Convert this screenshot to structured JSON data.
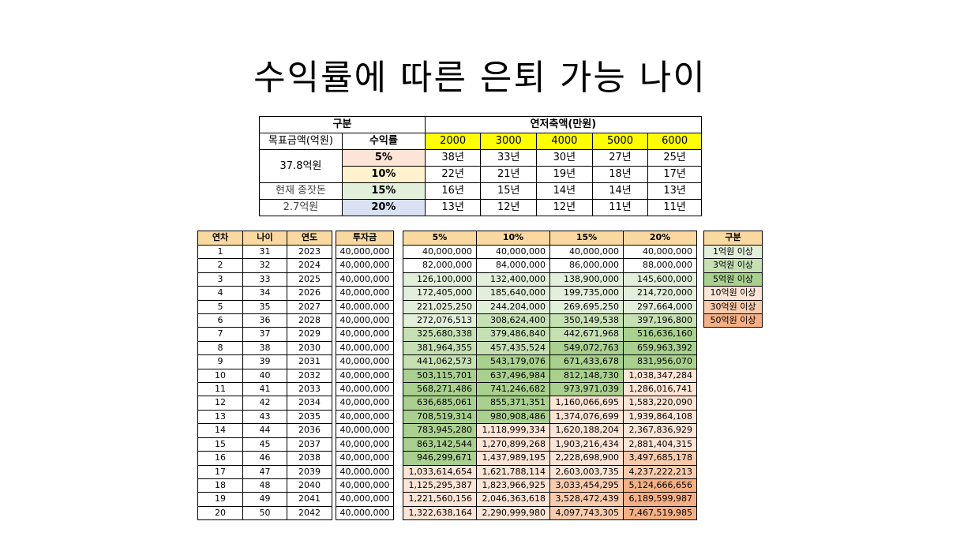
{
  "title": "수익률에 따른 은퇴 가능 나이",
  "summary": {
    "h_group": "구분",
    "h_savings": "연저축액(만원)",
    "h_target": "목표금액(억원)",
    "h_rate": "수익률",
    "savings": [
      "2000",
      "3000",
      "4000",
      "5000",
      "6000"
    ],
    "target_value": "37.8억원",
    "current_label": "현재 종잣돈",
    "current_value": "2.7억원",
    "rows": [
      {
        "rate": "5%",
        "color": "#fce4d6",
        "years": [
          "38년",
          "33년",
          "30년",
          "27년",
          "25년"
        ]
      },
      {
        "rate": "10%",
        "color": "#fff2cc",
        "years": [
          "22년",
          "21년",
          "19년",
          "18년",
          "17년"
        ]
      },
      {
        "rate": "15%",
        "color": "#e2efda",
        "years": [
          "16년",
          "15년",
          "14년",
          "14년",
          "13년"
        ]
      },
      {
        "rate": "20%",
        "color": "#d9e1f2",
        "years": [
          "13년",
          "12년",
          "12년",
          "11년",
          "11년"
        ]
      }
    ]
  },
  "table": {
    "headers": {
      "year_no": "연차",
      "age": "나이",
      "year": "연도",
      "invest": "투자금",
      "rates": [
        "5%",
        "10%",
        "15%",
        "20%"
      ]
    },
    "rows": [
      {
        "n": "1",
        "age": "31",
        "year": "2023",
        "inv": "40,000,000",
        "v": [
          "40,000,000",
          "40,000,000",
          "40,000,000",
          "40,000,000"
        ]
      },
      {
        "n": "2",
        "age": "32",
        "year": "2024",
        "inv": "40,000,000",
        "v": [
          "82,000,000",
          "84,000,000",
          "86,000,000",
          "88,000,000"
        ]
      },
      {
        "n": "3",
        "age": "33",
        "year": "2025",
        "inv": "40,000,000",
        "v": [
          "126,100,000",
          "132,400,000",
          "138,900,000",
          "145,600,000"
        ]
      },
      {
        "n": "4",
        "age": "34",
        "year": "2026",
        "inv": "40,000,000",
        "v": [
          "172,405,000",
          "185,640,000",
          "199,735,000",
          "214,720,000"
        ]
      },
      {
        "n": "5",
        "age": "35",
        "year": "2027",
        "inv": "40,000,000",
        "v": [
          "221,025,250",
          "244,204,000",
          "269,695,250",
          "297,664,000"
        ]
      },
      {
        "n": "6",
        "age": "36",
        "year": "2028",
        "inv": "40,000,000",
        "v": [
          "272,076,513",
          "308,624,400",
          "350,149,538",
          "397,196,800"
        ]
      },
      {
        "n": "7",
        "age": "37",
        "year": "2029",
        "inv": "40,000,000",
        "v": [
          "325,680,338",
          "379,486,840",
          "442,671,968",
          "516,636,160"
        ]
      },
      {
        "n": "8",
        "age": "38",
        "year": "2030",
        "inv": "40,000,000",
        "v": [
          "381,964,355",
          "457,435,524",
          "549,072,763",
          "659,963,392"
        ]
      },
      {
        "n": "9",
        "age": "39",
        "year": "2031",
        "inv": "40,000,000",
        "v": [
          "441,062,573",
          "543,179,076",
          "671,433,678",
          "831,956,070"
        ]
      },
      {
        "n": "10",
        "age": "40",
        "year": "2032",
        "inv": "40,000,000",
        "v": [
          "503,115,701",
          "637,496,984",
          "812,148,730",
          "1,038,347,284"
        ]
      },
      {
        "n": "11",
        "age": "41",
        "year": "2033",
        "inv": "40,000,000",
        "v": [
          "568,271,486",
          "741,246,682",
          "973,971,039",
          "1,286,016,741"
        ]
      },
      {
        "n": "12",
        "age": "42",
        "year": "2034",
        "inv": "40,000,000",
        "v": [
          "636,685,061",
          "855,371,351",
          "1,160,066,695",
          "1,583,220,090"
        ]
      },
      {
        "n": "13",
        "age": "43",
        "year": "2035",
        "inv": "40,000,000",
        "v": [
          "708,519,314",
          "980,908,486",
          "1,374,076,699",
          "1,939,864,108"
        ]
      },
      {
        "n": "14",
        "age": "44",
        "year": "2036",
        "inv": "40,000,000",
        "v": [
          "783,945,280",
          "1,118,999,334",
          "1,620,188,204",
          "2,367,836,929"
        ]
      },
      {
        "n": "15",
        "age": "45",
        "year": "2037",
        "inv": "40,000,000",
        "v": [
          "863,142,544",
          "1,270,899,268",
          "1,903,216,434",
          "2,881,404,315"
        ]
      },
      {
        "n": "16",
        "age": "46",
        "year": "2038",
        "inv": "40,000,000",
        "v": [
          "946,299,671",
          "1,437,989,195",
          "2,228,698,900",
          "3,497,685,178"
        ]
      },
      {
        "n": "17",
        "age": "47",
        "year": "2039",
        "inv": "40,000,000",
        "v": [
          "1,033,614,654",
          "1,621,788,114",
          "2,603,003,735",
          "4,237,222,213"
        ]
      },
      {
        "n": "18",
        "age": "48",
        "year": "2040",
        "inv": "40,000,000",
        "v": [
          "1,125,295,387",
          "1,823,966,925",
          "3,033,454,295",
          "5,124,666,656"
        ]
      },
      {
        "n": "19",
        "age": "49",
        "year": "2041",
        "inv": "40,000,000",
        "v": [
          "1,221,560,156",
          "2,046,363,618",
          "3,528,472,439",
          "6,189,599,987"
        ]
      },
      {
        "n": "20",
        "age": "50",
        "year": "2042",
        "inv": "40,000,000",
        "v": [
          "1,322,638,164",
          "2,290,999,980",
          "4,097,743,305",
          "7,467,519,985"
        ]
      }
    ]
  },
  "legend": {
    "header": "구분",
    "items": [
      {
        "label": "1억원 이상",
        "color": "#e2efda"
      },
      {
        "label": "3억원 이상",
        "color": "#c6e0b4"
      },
      {
        "label": "5억원 이상",
        "color": "#a9d08e"
      },
      {
        "label": "10억원 이상",
        "color": "#fce4d6"
      },
      {
        "label": "30억원 이상",
        "color": "#f8cbad"
      },
      {
        "label": "50억원 이상",
        "color": "#f4b084"
      }
    ]
  }
}
